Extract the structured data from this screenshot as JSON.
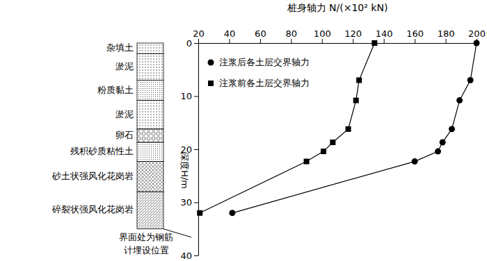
{
  "chart_data": {
    "type": "line",
    "title": "桩身轴力 N/(×10² kN)",
    "y_label": "深度H/m",
    "xlim": [
      20,
      200
    ],
    "xticks": [
      20,
      40,
      60,
      80,
      100,
      120,
      140,
      160,
      180,
      200
    ],
    "ylim": [
      0,
      40
    ],
    "yticks": [
      0,
      10,
      20,
      30,
      40
    ],
    "legend": "top-left",
    "series": [
      {
        "name": "注浆后各土层交界轴力",
        "color": "#000000",
        "marker": "circle",
        "x": [
          200,
          196,
          189,
          184,
          178,
          175,
          160,
          42
        ],
        "values": [
          0,
          7,
          10.8,
          16.2,
          18.7,
          20.4,
          22.3,
          32
        ]
      },
      {
        "name": "注浆前各土层交界轴力",
        "color": "#000000",
        "marker": "square",
        "x": [
          134,
          124,
          122,
          117,
          107,
          101,
          90,
          21
        ],
        "values": [
          0,
          7,
          10.8,
          16.2,
          18.7,
          20.4,
          22.3,
          32
        ]
      }
    ],
    "layers": [
      {
        "name": "杂填土",
        "top": 0,
        "bottom": 2
      },
      {
        "name": "淤泥",
        "top": 2,
        "bottom": 7
      },
      {
        "name": "粉质黏土",
        "top": 7,
        "bottom": 10.8
      },
      {
        "name": "淤泥",
        "top": 10.8,
        "bottom": 16.2
      },
      {
        "name": "卵石",
        "top": 16.2,
        "bottom": 18.7
      },
      {
        "name": "残积砂质粘性土",
        "top": 18.7,
        "bottom": 22.3
      },
      {
        "name": "砂土状强风化花岗岩",
        "top": 22.3,
        "bottom": 28
      },
      {
        "name": "碎裂状强风化花岗岩",
        "top": 28,
        "bottom": 35
      }
    ],
    "annotation": [
      "界面处为钢筋",
      "计埋设位置"
    ]
  }
}
